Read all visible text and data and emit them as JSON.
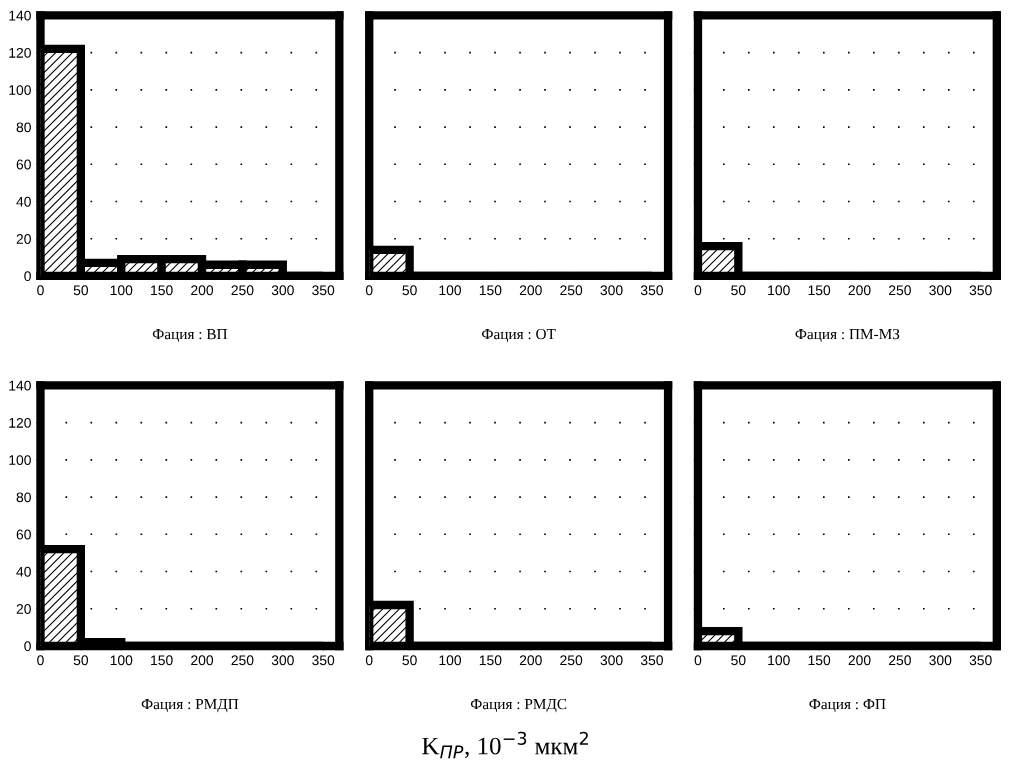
{
  "chart_data": [
    {
      "type": "histogram",
      "xlabel": "Фация : ВП",
      "bins": [
        0,
        50,
        100,
        150,
        200,
        250,
        300,
        350
      ],
      "values": [
        122,
        7,
        9,
        9,
        6,
        6,
        0
      ],
      "color": "#000000",
      "xlim": [
        0,
        370
      ],
      "xticks": [
        0,
        50,
        100,
        150,
        200,
        250,
        300,
        350
      ],
      "ylim": [
        0,
        140
      ],
      "yticks": [
        0,
        20,
        40,
        60,
        80,
        100,
        120,
        140
      ],
      "grid": "y"
    },
    {
      "type": "histogram",
      "xlabel": "Фация : ОТ",
      "bins": [
        0,
        50,
        100,
        150,
        200,
        250,
        300,
        350
      ],
      "values": [
        14,
        0,
        0,
        0,
        0,
        0,
        0
      ],
      "color": "#000000",
      "xlim": [
        0,
        370
      ],
      "xticks": [
        0,
        50,
        100,
        150,
        200,
        250,
        300,
        350
      ],
      "ylim": [
        0,
        140
      ],
      "yticks": [
        0,
        20,
        40,
        60,
        80,
        100,
        120,
        140
      ],
      "grid": "y",
      "tick_labels": "x"
    },
    {
      "type": "histogram",
      "xlabel": "Фация : ПМ-МЗ",
      "bins": [
        0,
        50,
        100,
        150,
        200,
        250,
        300,
        350
      ],
      "values": [
        16,
        0,
        0,
        0,
        0,
        0,
        0
      ],
      "color": "#000000",
      "xlim": [
        0,
        370
      ],
      "xticks": [
        0,
        50,
        100,
        150,
        200,
        250,
        300,
        350
      ],
      "ylim": [
        0,
        140
      ],
      "yticks": [
        0,
        20,
        40,
        60,
        80,
        100,
        120,
        140
      ],
      "grid": "y",
      "tick_labels": "x"
    },
    {
      "type": "histogram",
      "xlabel": "Фация : РМДП",
      "bins": [
        0,
        50,
        100,
        150,
        200,
        250,
        300,
        350
      ],
      "values": [
        52,
        2,
        0,
        0,
        0,
        0,
        0
      ],
      "color": "#000000",
      "xlim": [
        0,
        370
      ],
      "xticks": [
        0,
        50,
        100,
        150,
        200,
        250,
        300,
        350
      ],
      "ylim": [
        0,
        140
      ],
      "yticks": [
        0,
        20,
        40,
        60,
        80,
        100,
        120,
        140
      ],
      "grid": "y"
    },
    {
      "type": "histogram",
      "xlabel": "Фация : РМДС",
      "bins": [
        0,
        50,
        100,
        150,
        200,
        250,
        300,
        350
      ],
      "values": [
        22,
        0,
        0,
        0,
        0,
        0,
        0
      ],
      "color": "#000000",
      "xlim": [
        0,
        370
      ],
      "xticks": [
        0,
        50,
        100,
        150,
        200,
        250,
        300,
        350
      ],
      "ylim": [
        0,
        140
      ],
      "yticks": [
        0,
        20,
        40,
        60,
        80,
        100,
        120,
        140
      ],
      "grid": "y",
      "tick_labels": "x",
      "annotations": [
        "K$_{ПР}$, 10$^{−3}$ мкм$^{2}$"
      ]
    },
    {
      "type": "histogram",
      "xlabel": "Фация : ФП",
      "bins": [
        0,
        50,
        100,
        150,
        200,
        250,
        300,
        350
      ],
      "values": [
        8,
        0,
        0,
        0,
        0,
        0,
        0
      ],
      "color": "#000000",
      "xlim": [
        0,
        370
      ],
      "xticks": [
        0,
        50,
        100,
        150,
        200,
        250,
        300,
        350
      ],
      "ylim": [
        0,
        140
      ],
      "yticks": [
        0,
        20,
        40,
        60,
        80,
        100,
        120,
        140
      ],
      "grid": "y",
      "tick_labels": "x"
    }
  ]
}
